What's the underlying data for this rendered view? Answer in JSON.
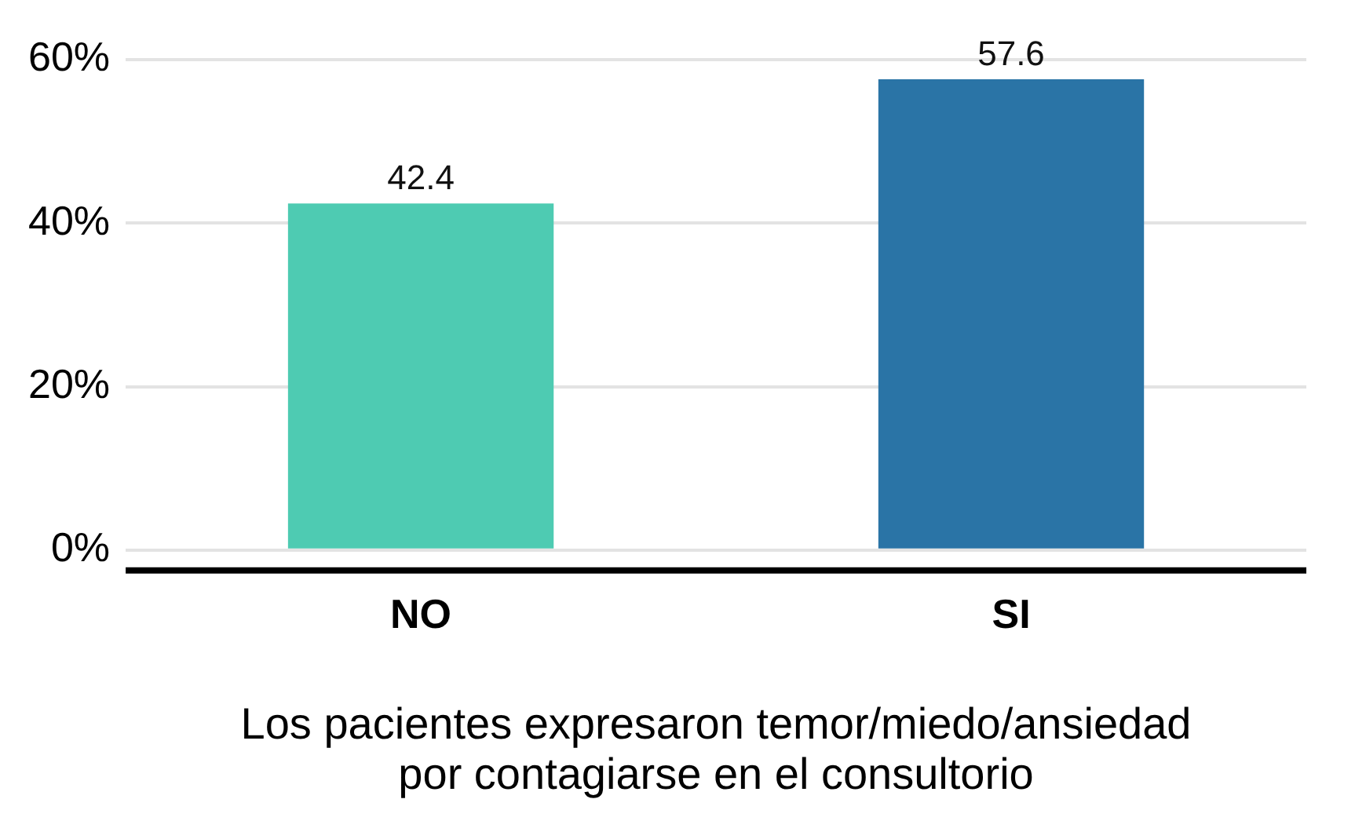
{
  "chart_data": {
    "type": "bar",
    "xlabel": "Los pacientes expresaron temor/miedo/ansiedad\npor contagiarse en el consultorio",
    "categories": [
      "NO",
      "SI"
    ],
    "values": [
      42.4,
      57.6
    ],
    "colors": [
      "#4ecbb2",
      "#2a74a6"
    ],
    "ylim": [
      -2.5,
      60
    ],
    "yticks": [
      {
        "value": 0,
        "label": "0%"
      },
      {
        "value": 20,
        "label": "20%"
      },
      {
        "value": 40,
        "label": "40%"
      },
      {
        "value": 60,
        "label": "60%"
      }
    ],
    "grid": "y",
    "data_labels": true,
    "legend": false
  }
}
